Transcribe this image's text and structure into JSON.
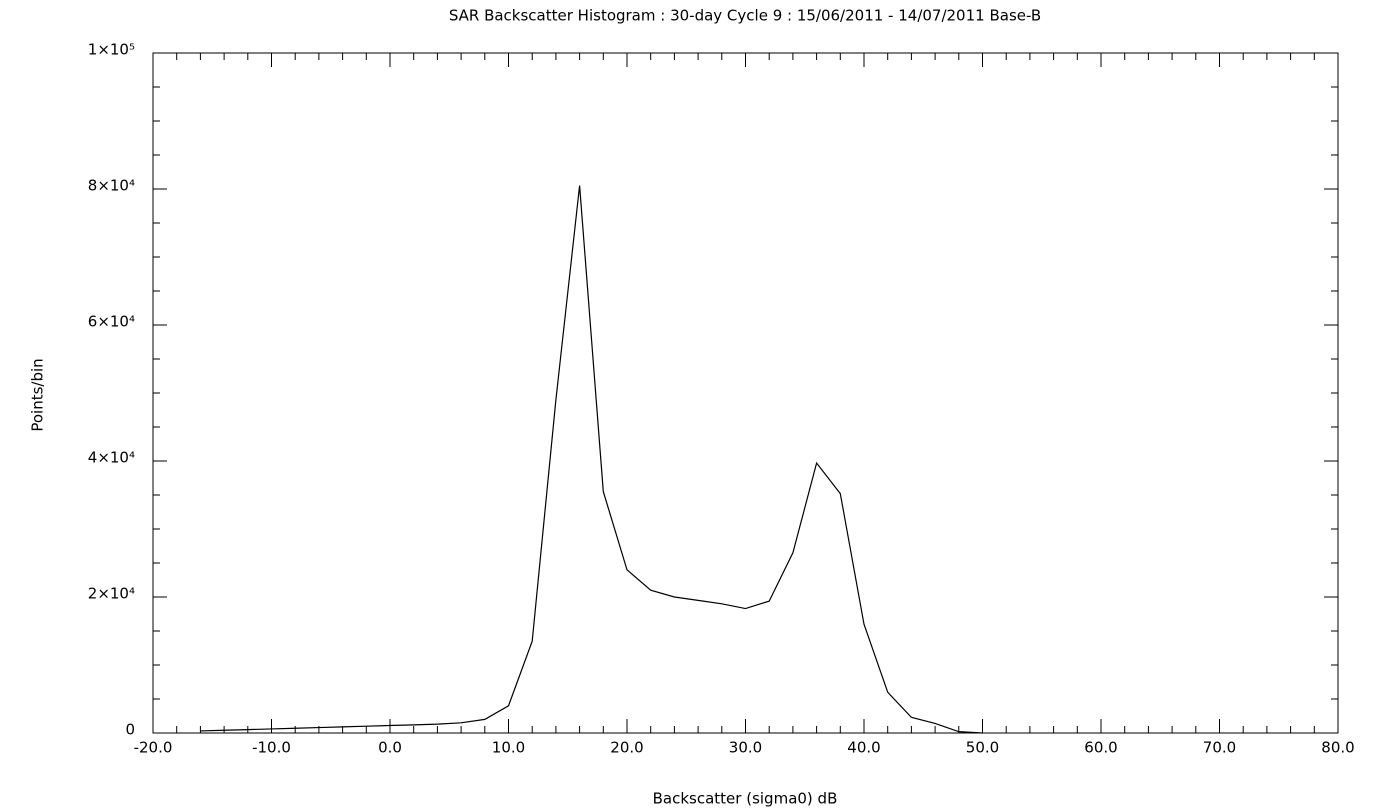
{
  "chart_data": {
    "type": "line",
    "title": "SAR Backscatter Histogram : 30-day Cycle 9 : 15/06/2011 - 14/07/2011 Base-B",
    "xlabel": "Backscatter (sigma0) dB",
    "ylabel": "Points/bin",
    "x": [
      -16,
      -14,
      -12,
      -10,
      -8,
      -6,
      -4,
      -2,
      0,
      2,
      4,
      6,
      8,
      10,
      12,
      14,
      16,
      18,
      20,
      22,
      24,
      26,
      28,
      30,
      32,
      34,
      36,
      38,
      40,
      42,
      44,
      46,
      48,
      50
    ],
    "series": [
      {
        "name": "Points/bin",
        "color": "#000000",
        "values": [
          300,
          400,
          500,
          600,
          700,
          800,
          900,
          1000,
          1100,
          1200,
          1300,
          1500,
          2000,
          4000,
          13500,
          49000,
          80500,
          35500,
          24000,
          21000,
          20000,
          19500,
          19000,
          18300,
          19400,
          26500,
          39700,
          35200,
          16000,
          6000,
          2300,
          1400,
          200,
          0
        ]
      }
    ],
    "xlim": [
      -20,
      80
    ],
    "ylim": [
      0,
      100000
    ],
    "xticks": [
      {
        "value": -20,
        "label": "-20.0"
      },
      {
        "value": -10,
        "label": "-10.0"
      },
      {
        "value": 0,
        "label": "0.0"
      },
      {
        "value": 10,
        "label": "10.0"
      },
      {
        "value": 20,
        "label": "20.0"
      },
      {
        "value": 30,
        "label": "30.0"
      },
      {
        "value": 40,
        "label": "40.0"
      },
      {
        "value": 50,
        "label": "50.0"
      },
      {
        "value": 60,
        "label": "60.0"
      },
      {
        "value": 70,
        "label": "70.0"
      },
      {
        "value": 80,
        "label": "80.0"
      }
    ],
    "yticks": [
      0,
      {
        "value": 20000,
        "label": "2×10⁴"
      },
      {
        "value": 40000,
        "label": "4×10⁴"
      },
      {
        "value": 60000,
        "label": "6×10⁴"
      },
      {
        "value": 80000,
        "label": "8×10⁴"
      },
      {
        "value": 100000,
        "label": "1×10⁵"
      }
    ],
    "minor_xticks": [
      -18,
      -16,
      -14,
      -12,
      -8,
      -6,
      -4,
      -2,
      2,
      4,
      6,
      8,
      12,
      14,
      16,
      18,
      22,
      24,
      26,
      28,
      32,
      34,
      36,
      38,
      42,
      44,
      46,
      48,
      52,
      54,
      56,
      58,
      62,
      64,
      66,
      68,
      72,
      74,
      76,
      78
    ],
    "minor_yticks": [
      5000,
      10000,
      15000,
      25000,
      30000,
      35000,
      45000,
      50000,
      55000,
      65000,
      70000,
      75000,
      85000,
      90000,
      95000
    ],
    "grid": false
  }
}
